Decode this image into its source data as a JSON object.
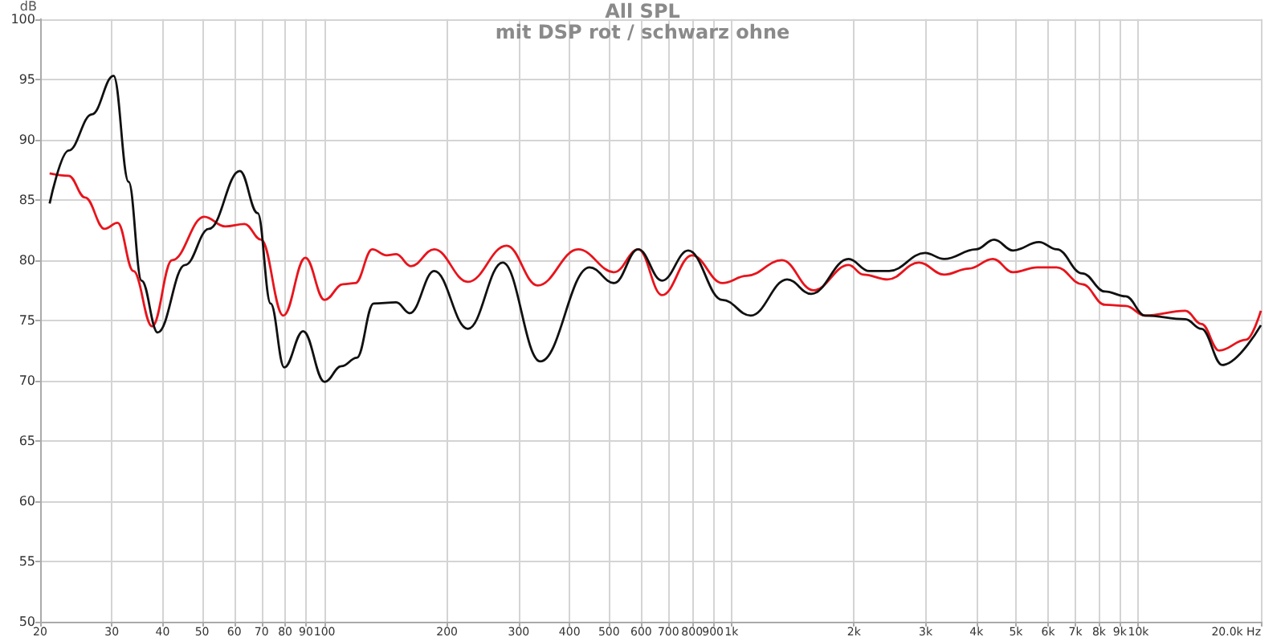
{
  "chart_data": {
    "type": "line",
    "title": "All SPL",
    "subtitle": "mit DSP rot / schwarz ohne",
    "ylabel": "dB",
    "series": [
      {
        "color": "#e8141c",
        "x": [
          21.1,
          23.5,
          25.8,
          28.8,
          31,
          33.9,
          37.7,
          42.2,
          50.6,
          57,
          63.6,
          69.8,
          79.2,
          89.7,
          100,
          111,
          119,
          131,
          142,
          150,
          163,
          186,
          225,
          280,
          334,
          420,
          515,
          590,
          675,
          800,
          950,
          1090,
          1330,
          1590,
          1940,
          2110,
          2420,
          2890,
          3330,
          3830,
          4390,
          4920,
          5640,
          6300,
          7280,
          8280,
          9310,
          10380,
          13040,
          14290,
          15800,
          18400,
          20000
        ],
        "values": [
          87.2,
          87.0,
          85.2,
          82.6,
          83.1,
          79.1,
          74.5,
          80.0,
          83.6,
          82.8,
          83.0,
          81.7,
          75.4,
          80.2,
          76.7,
          78.0,
          78.1,
          80.9,
          80.4,
          80.5,
          79.5,
          80.9,
          78.2,
          81.2,
          77.9,
          80.9,
          79.0,
          80.9,
          77.1,
          80.4,
          78.1,
          78.7,
          80.0,
          77.5,
          79.6,
          78.8,
          78.4,
          79.8,
          78.8,
          79.3,
          80.1,
          79.0,
          79.4,
          79.4,
          78.0,
          76.3,
          76.2,
          75.4,
          75.8,
          74.7,
          72.5,
          73.4,
          75.8
        ]
      },
      {
        "color": "#111111",
        "x": [
          21.1,
          23.5,
          26.8,
          30.3,
          33,
          35.5,
          38.9,
          45.4,
          52,
          61.9,
          68.5,
          73.7,
          79.6,
          88.6,
          100,
          110,
          120,
          132,
          150,
          162,
          186,
          225,
          274,
          339,
          448,
          515,
          590,
          675,
          783,
          950,
          1115,
          1370,
          1570,
          1940,
          2180,
          2440,
          2990,
          3330,
          3990,
          4420,
          4920,
          5700,
          6300,
          7280,
          8280,
          9310,
          10380,
          13040,
          14290,
          16080,
          20000
        ],
        "values": [
          84.7,
          89.1,
          92.1,
          95.3,
          86.5,
          78.3,
          74.0,
          79.6,
          82.6,
          87.4,
          83.9,
          76.4,
          71.1,
          74.1,
          69.9,
          71.2,
          71.9,
          76.4,
          76.5,
          75.6,
          79.1,
          74.3,
          79.8,
          71.6,
          79.4,
          78.1,
          80.9,
          78.3,
          80.8,
          76.7,
          75.4,
          78.4,
          77.2,
          80.1,
          79.1,
          79.1,
          80.6,
          80.1,
          80.9,
          81.7,
          80.8,
          81.5,
          80.9,
          78.9,
          77.4,
          77.0,
          75.4,
          75.1,
          74.3,
          71.3,
          74.6
        ]
      }
    ],
    "xlim": [
      20,
      20000
    ],
    "ylim": [
      50,
      100
    ],
    "xticks": [
      20,
      30,
      40,
      50,
      60,
      70,
      80,
      90,
      100,
      200,
      300,
      400,
      500,
      600,
      700,
      800,
      900,
      {
        "value": 1000,
        "label": "1k"
      },
      {
        "value": 2000,
        "label": "2k"
      },
      {
        "value": 3000,
        "label": "3k"
      },
      {
        "value": 4000,
        "label": "4k"
      },
      {
        "value": 5000,
        "label": "5k"
      },
      {
        "value": 6000,
        "label": "6k"
      },
      {
        "value": 7000,
        "label": "7k"
      },
      {
        "value": 8000,
        "label": "8k"
      },
      {
        "value": 9000,
        "label": "9k"
      },
      {
        "value": 10000,
        "label": "10k"
      },
      {
        "value": 20000,
        "label": "20.0k Hz"
      }
    ],
    "yticks": [
      50,
      55,
      60,
      65,
      70,
      75,
      80,
      85,
      90,
      95,
      100
    ],
    "grid": true,
    "marker": "none",
    "line_style": "solid",
    "log": "x"
  }
}
